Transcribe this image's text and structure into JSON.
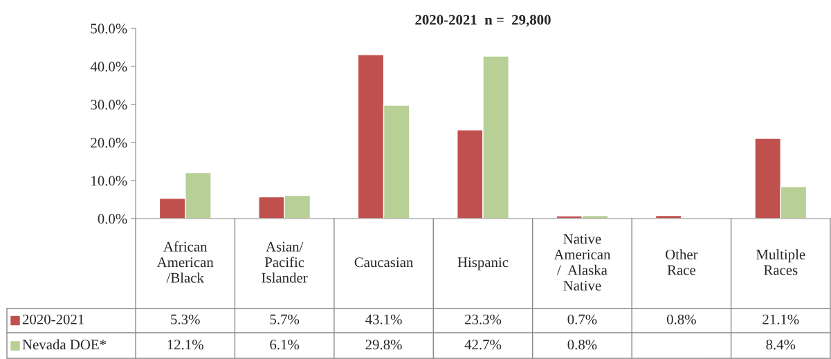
{
  "chart_data": {
    "type": "bar",
    "title": "2020-2021  n =  29,800",
    "categories": [
      "African\nAmerican\n/Black",
      "Asian/\nPacific\nIslander",
      "Caucasian",
      "Hispanic",
      "Native\nAmerican\n/  Alaska\nNative",
      "Other\nRace",
      "Multiple\nRaces"
    ],
    "series": [
      {
        "name": "2020-2021",
        "color": "#c0504d",
        "values": [
          5.3,
          5.7,
          43.1,
          23.3,
          0.7,
          0.8,
          21.1
        ],
        "value_labels": [
          "5.3%",
          "5.7%",
          "43.1%",
          "23.3%",
          "0.7%",
          "0.8%",
          "21.1%"
        ]
      },
      {
        "name": "Nevada DOE*",
        "color": "#b8cf96",
        "values": [
          12.1,
          6.1,
          29.8,
          42.7,
          0.8,
          null,
          8.4
        ],
        "value_labels": [
          "12.1%",
          "6.1%",
          "29.8%",
          "42.7%",
          "0.8%",
          null,
          "8.4%"
        ]
      }
    ],
    "ylim": [
      0,
      50
    ],
    "yticks": [
      {
        "value": 0,
        "label": "0.0%"
      },
      {
        "value": 10,
        "label": "10.0%"
      },
      {
        "value": 20,
        "label": "20.0%"
      },
      {
        "value": 30,
        "label": "30.0%"
      },
      {
        "value": 40,
        "label": "40.0%"
      },
      {
        "value": 50,
        "label": "50.0%"
      }
    ],
    "grid": false,
    "legend": "bottom"
  }
}
